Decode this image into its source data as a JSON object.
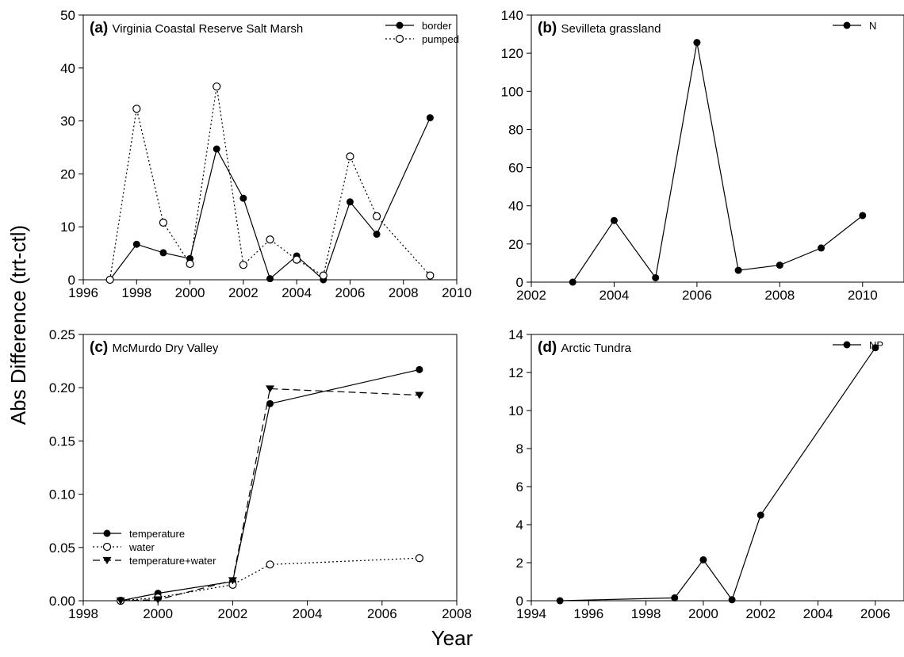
{
  "figure": {
    "ylabel": "Abs Difference (trt-ctl)",
    "xlabel": "Year"
  },
  "chart_data": [
    {
      "type": "line",
      "panel": "(a)",
      "title": "Virginia Coastal Reserve Salt Marsh",
      "xlim": [
        1996,
        2010
      ],
      "ylim": [
        0,
        50
      ],
      "xticks": [
        1996,
        1998,
        2000,
        2002,
        2004,
        2006,
        2008,
        2010
      ],
      "yticks": [
        0,
        10,
        20,
        30,
        40,
        50
      ],
      "legend_position": "top-right",
      "series": [
        {
          "name": "border",
          "marker": "filled-circle",
          "line": "solid",
          "points": [
            [
              1997,
              0
            ],
            [
              1998,
              6.7
            ],
            [
              1999,
              5.1
            ],
            [
              2000,
              4.0
            ],
            [
              2001,
              24.7
            ],
            [
              2002,
              15.4
            ],
            [
              2003,
              0.2
            ],
            [
              2004,
              4.5
            ],
            [
              2005,
              0
            ],
            [
              2006,
              14.7
            ],
            [
              2007,
              8.6
            ],
            [
              2009,
              30.6
            ]
          ]
        },
        {
          "name": "pumped",
          "marker": "open-circle",
          "line": "dotted",
          "points": [
            [
              1997,
              0
            ],
            [
              1998,
              32.3
            ],
            [
              1999,
              10.8
            ],
            [
              2000,
              3.0
            ],
            [
              2001,
              36.5
            ],
            [
              2002,
              2.8
            ],
            [
              2003,
              7.6
            ],
            [
              2004,
              3.8
            ],
            [
              2005,
              0.8
            ],
            [
              2006,
              23.3
            ],
            [
              2007,
              12.0
            ],
            [
              2009,
              0.8
            ]
          ]
        }
      ]
    },
    {
      "type": "line",
      "panel": "(b)",
      "title": "Sevilleta grassland",
      "xlim": [
        2002,
        2011
      ],
      "ylim": [
        0,
        140
      ],
      "xticks": [
        2002,
        2004,
        2006,
        2008,
        2010
      ],
      "yticks": [
        0,
        20,
        40,
        60,
        80,
        100,
        120,
        140
      ],
      "legend_position": "top-right",
      "series": [
        {
          "name": "N",
          "marker": "filled-circle",
          "line": "solid",
          "points": [
            [
              2003,
              0
            ],
            [
              2004,
              32.3
            ],
            [
              2005,
              2.3
            ],
            [
              2006,
              125.6
            ],
            [
              2007,
              6.2
            ],
            [
              2008,
              8.9
            ],
            [
              2009,
              17.9
            ],
            [
              2010,
              34.9
            ]
          ]
        }
      ]
    },
    {
      "type": "line",
      "panel": "(c)",
      "title": "McMurdo Dry Valley",
      "xlim": [
        1998,
        2008
      ],
      "ylim": [
        0,
        0.25
      ],
      "xticks": [
        1998,
        2000,
        2002,
        2004,
        2006,
        2008
      ],
      "yticks": [
        0,
        0.05,
        0.1,
        0.15,
        0.2,
        0.25
      ],
      "ytick_labels": [
        "0.00",
        "0.05",
        "0.10",
        "0.15",
        "0.20",
        "0.25"
      ],
      "legend_position": "bottom-left",
      "series": [
        {
          "name": "temperature",
          "marker": "filled-circle",
          "line": "solid",
          "points": [
            [
              1999,
              0
            ],
            [
              2000,
              0.007
            ],
            [
              2002,
              0.018
            ],
            [
              2003,
              0.185
            ],
            [
              2007,
              0.217
            ]
          ]
        },
        {
          "name": "water",
          "marker": "open-circle",
          "line": "dotted",
          "points": [
            [
              1999,
              0
            ],
            [
              2000,
              0.003
            ],
            [
              2002,
              0.015
            ],
            [
              2003,
              0.034
            ],
            [
              2007,
              0.04
            ]
          ]
        },
        {
          "name": "temperature+water",
          "marker": "filled-triangle-down",
          "line": "dashed",
          "points": [
            [
              1999,
              0
            ],
            [
              2000,
              0.001
            ],
            [
              2002,
              0.019
            ],
            [
              2003,
              0.199
            ],
            [
              2007,
              0.193
            ]
          ]
        }
      ]
    },
    {
      "type": "line",
      "panel": "(d)",
      "title": "Arctic Tundra",
      "xlim": [
        1994,
        2007
      ],
      "ylim": [
        0,
        14
      ],
      "xticks": [
        1994,
        1996,
        1998,
        2000,
        2002,
        2004,
        2006
      ],
      "yticks": [
        0,
        2,
        4,
        6,
        8,
        10,
        12,
        14
      ],
      "legend_position": "top-right",
      "series": [
        {
          "name": "NP",
          "marker": "filled-circle",
          "line": "solid",
          "points": [
            [
              1995,
              0
            ],
            [
              1999,
              0.15
            ],
            [
              2000,
              2.15
            ],
            [
              2001,
              0.05
            ],
            [
              2002,
              4.5
            ],
            [
              2006,
              13.3
            ]
          ]
        }
      ]
    }
  ]
}
